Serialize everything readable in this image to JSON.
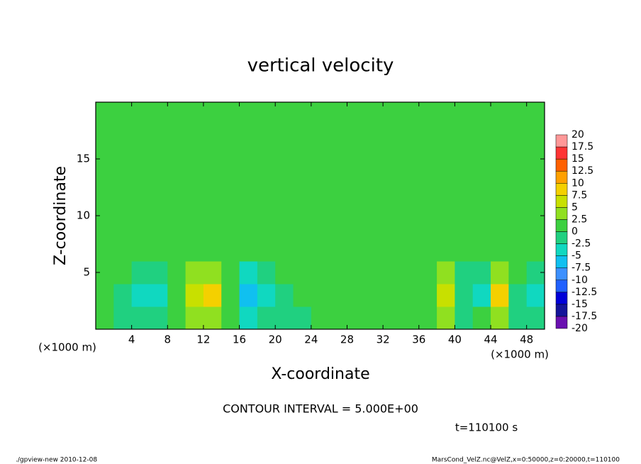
{
  "chart_data": {
    "type": "contour",
    "title": "vertical velocity",
    "xlabel": "X-coordinate",
    "ylabel": "Z-coordinate",
    "x_unit": "(×1000 m)",
    "y_unit": "(×1000 m)",
    "contour_interval": "CONTOUR INTERVAL = 5.000E+00",
    "time_label": "t=110100 s",
    "footer_left": "./gpview-new  2010-12-08",
    "footer_right": "MarsCond_VelZ.nc@VelZ,x=0:50000,z=0:20000,t=110100",
    "xlim": [
      0,
      50
    ],
    "ylim": [
      0,
      20
    ],
    "xticks": [
      4,
      8,
      12,
      16,
      20,
      24,
      28,
      32,
      36,
      40,
      44,
      48
    ],
    "yticks": [
      5,
      10,
      15
    ],
    "x": [
      1,
      3,
      5,
      7,
      9,
      11,
      13,
      15,
      17,
      19,
      21,
      23,
      25,
      27,
      29,
      31,
      33,
      35,
      37,
      39,
      41,
      43,
      45,
      47,
      49
    ],
    "z": [
      1,
      3,
      5,
      7,
      9,
      11,
      13,
      15,
      17,
      19
    ],
    "values": [
      [
        0,
        -1,
        -2,
        -2,
        0,
        4,
        4,
        0,
        -4,
        -2,
        -2,
        -1,
        0,
        0,
        0,
        0,
        1,
        1,
        2,
        4,
        -1,
        0,
        4,
        -2,
        -1
      ],
      [
        0,
        -1,
        -3,
        -4,
        1,
        7,
        8,
        1,
        -7,
        -4,
        -1,
        0,
        0,
        0,
        0,
        0,
        0,
        1,
        2,
        6,
        -2,
        -3,
        9,
        -1,
        -3
      ],
      [
        1,
        0,
        -1,
        -2,
        1,
        4,
        3,
        0,
        -3,
        -1,
        0,
        0,
        0,
        0,
        0,
        0,
        0,
        1,
        1,
        3,
        -1,
        -1,
        4,
        0,
        -1
      ],
      [
        1,
        1,
        0,
        0,
        1,
        1,
        1,
        1,
        0,
        0,
        1,
        1,
        1,
        1,
        1,
        1,
        1,
        1,
        1,
        1,
        1,
        1,
        1,
        1,
        1
      ],
      [
        1,
        1,
        1,
        1,
        1,
        1,
        1,
        1,
        1,
        1,
        1,
        1,
        1,
        1,
        1,
        1,
        1,
        1,
        1,
        1,
        1,
        1,
        1,
        1,
        1
      ],
      [
        1,
        1,
        1,
        1,
        1,
        1,
        1,
        1,
        2,
        1,
        1,
        1,
        1,
        1,
        1,
        1,
        1,
        1,
        1,
        1,
        1,
        1,
        1,
        1,
        1
      ],
      [
        1,
        1,
        1,
        1,
        1,
        1,
        1,
        1,
        1,
        1,
        1,
        1,
        1,
        1,
        1,
        1,
        1,
        1,
        1,
        1,
        1,
        1,
        1,
        1,
        1
      ],
      [
        1,
        1,
        1,
        1,
        1,
        1,
        1,
        1,
        1,
        1,
        2,
        1,
        1,
        1,
        1,
        1,
        1,
        1,
        1,
        1,
        1,
        1,
        1,
        1,
        1
      ],
      [
        1,
        1,
        1,
        1,
        1,
        1,
        1,
        1,
        1,
        1,
        1,
        1,
        1,
        1,
        1,
        1,
        1,
        1,
        1,
        1,
        1,
        1,
        1,
        1,
        1
      ],
      [
        1,
        1,
        1,
        1,
        1,
        1,
        1,
        1,
        1,
        1,
        1,
        1,
        1,
        1,
        1,
        1,
        1,
        1,
        1,
        1,
        1,
        1,
        1,
        1,
        1
      ]
    ],
    "colorbar_levels": [
      -20,
      -17.5,
      -15,
      -12.5,
      -10,
      -7.5,
      -5,
      -2.5,
      0,
      2.5,
      5,
      7.5,
      10,
      12.5,
      15,
      17.5,
      20
    ],
    "colorbar_colors": [
      "#6a10b0",
      "#14149a",
      "#0000d8",
      "#2060ff",
      "#3c90ff",
      "#10c0f0",
      "#10d8c0",
      "#20d080",
      "#3cd040",
      "#90e020",
      "#c8e000",
      "#f4d000",
      "#ffa000",
      "#ff6000",
      "#ff3434",
      "#ff9898"
    ]
  }
}
